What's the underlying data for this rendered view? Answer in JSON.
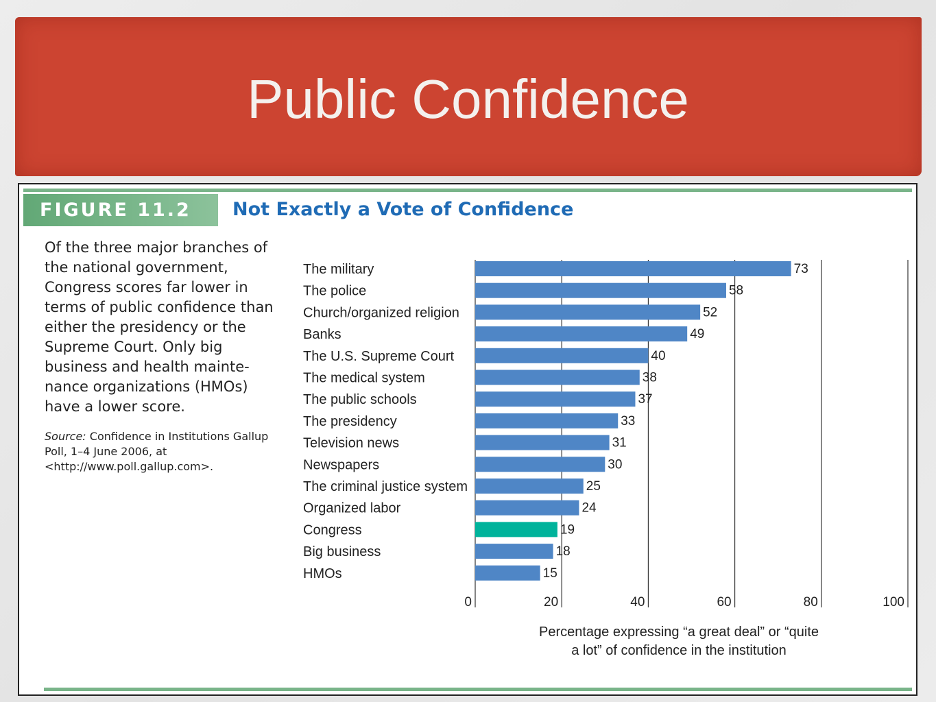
{
  "slide": {
    "title": "Public Confidence"
  },
  "figure": {
    "tag": "FIGURE 11.2",
    "title": "Not Exactly a Vote of Confidence",
    "caption": "Of the three major branches of the national government, Congress scores far lower in terms of public confidence than either the presidency or the Supreme Court. Only big business and health mainte-nance organizations (HMOs) have a lower score.",
    "source_label": "Source:",
    "source_text": "Confidence in Institutions Gallup Poll, 1–4 June 2006, at <http://www.poll.gallup.com>."
  },
  "colors": {
    "banner": "#cc4431",
    "bar": "#4f86c6",
    "highlight_bar": "#00b39b",
    "rule": "#79b489",
    "title_blue": "#1f6bb5"
  },
  "chart_data": {
    "type": "bar",
    "orientation": "horizontal",
    "categories": [
      "The military",
      "The police",
      "Church/organized religion",
      "Banks",
      "The U.S. Supreme Court",
      "The medical system",
      "The public schools",
      "The presidency",
      "Television news",
      "Newspapers",
      "The criminal justice system",
      "Organized labor",
      "Congress",
      "Big business",
      "HMOs"
    ],
    "values": [
      73,
      58,
      52,
      49,
      40,
      38,
      37,
      33,
      31,
      30,
      25,
      24,
      19,
      18,
      15
    ],
    "highlight": "Congress",
    "xlim": [
      0,
      100
    ],
    "xticks": [
      0,
      20,
      40,
      60,
      80,
      100
    ],
    "xlabel": "Percentage expressing “a great deal” or “quite a lot” of confidence in the institution",
    "grid": true
  }
}
